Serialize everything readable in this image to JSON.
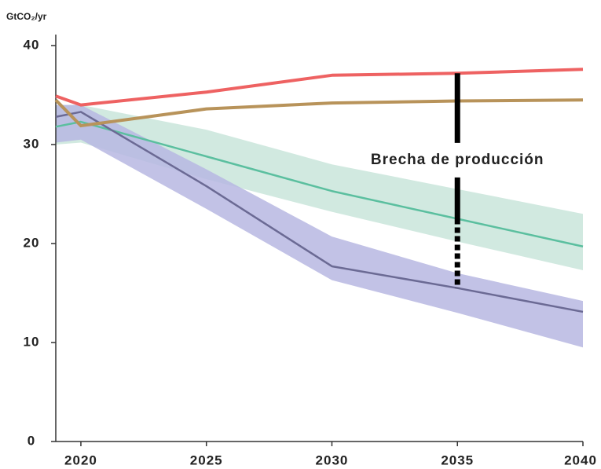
{
  "chart_data": {
    "type": "line",
    "y_label": "GtCO₂/yr",
    "x": [
      2019,
      2020,
      2025,
      2030,
      2035,
      2040
    ],
    "xlim": [
      2019,
      2040
    ],
    "xticks": [
      2020,
      2025,
      2030,
      2035,
      2040
    ],
    "ylim": [
      0,
      40
    ],
    "yticks": [
      0,
      10,
      20,
      30,
      40
    ],
    "bands": [
      {
        "color": "#c9e5da",
        "upper": [
          34,
          34,
          31.5,
          28,
          25.5,
          23
        ],
        "lower": [
          30,
          30.2,
          26.5,
          23.2,
          20.2,
          17.3
        ]
      },
      {
        "color": "#b7b7e2",
        "upper": [
          34,
          34,
          27.5,
          20.7,
          17,
          14.2
        ],
        "lower": [
          30.2,
          30.5,
          23.5,
          16.3,
          13,
          9.5
        ]
      }
    ],
    "series": [
      {
        "color": "#5bbf9f",
        "values": [
          31.8,
          32.3,
          28.8,
          25.3,
          22.5,
          19.7
        ]
      },
      {
        "color": "#6b6a94",
        "values": [
          32.8,
          33.3,
          25.8,
          17.7,
          15.5,
          13.1
        ]
      },
      {
        "color": "#ee6262",
        "values": [
          34.9,
          34.0,
          35.3,
          37.0,
          37.2,
          37.6
        ]
      },
      {
        "color": "#b8935a",
        "values": [
          34.5,
          31.9,
          33.6,
          34.2,
          34.4,
          34.5
        ]
      }
    ],
    "annotation": {
      "text": "Brecha de producción",
      "x": 2035
    }
  }
}
